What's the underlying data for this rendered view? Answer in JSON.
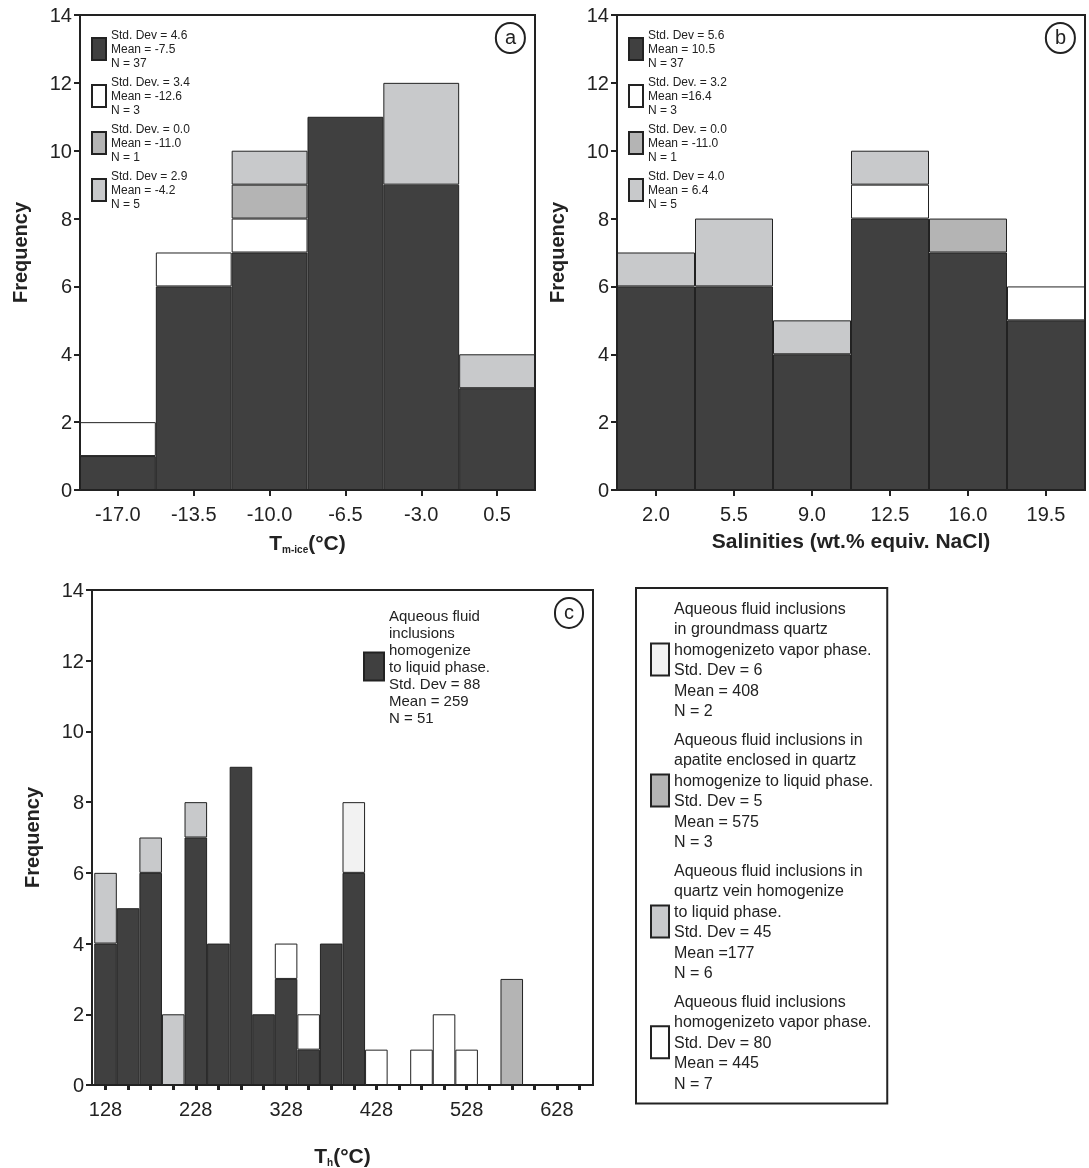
{
  "chart_data": [
    {
      "type": "bar",
      "title": "a",
      "stacked": true,
      "xlabel": "T$_{m-ice}$(°C)",
      "ylabel": "Frequency",
      "categories": [
        "-17.0",
        "-13.5",
        "-10.0",
        "-6.5",
        "-3.0",
        "0.5"
      ],
      "series": [
        {
          "name": "Std. Dev = 4.6\nMean = -7.5\nN = 37",
          "color": "#404040",
          "values": [
            1,
            6,
            7,
            11,
            9,
            3
          ]
        },
        {
          "name": "Std. Dev. = 3.4\nMean = -12.6\nN = 3",
          "color": "#ffffff",
          "values": [
            1,
            1,
            1,
            0,
            0,
            0
          ]
        },
        {
          "name": "Std. Dev. = 0.0\nMean = -11.0\nN = 1",
          "color": "#b4b4b4",
          "values": [
            0,
            0,
            1,
            0,
            0,
            0
          ]
        },
        {
          "name": "Std. Dev = 2.9\nMean = -4.2\nN = 5",
          "color": "#c8c9cb",
          "values": [
            0,
            0,
            1,
            0,
            3,
            1
          ]
        }
      ],
      "ylim": [
        0,
        14
      ],
      "yticks": [
        0,
        2,
        4,
        6,
        8,
        10,
        12,
        14
      ],
      "legend": "top left"
    },
    {
      "type": "bar",
      "title": "b",
      "stacked": true,
      "xlabel": "Salinities (wt.% equiv. NaCl)",
      "ylabel": "Frequency",
      "categories": [
        "2.0",
        "5.5",
        "9.0",
        "12.5",
        "16.0",
        "19.5"
      ],
      "series": [
        {
          "name": "Std. Dev = 5.6\nMean = 10.5\nN = 37",
          "color": "#404040",
          "values": [
            6,
            6,
            4,
            8,
            7,
            5
          ]
        },
        {
          "name": "Std. Dev. = 3.2\nMean =16.4\nN = 3",
          "color": "#ffffff",
          "values": [
            0,
            0,
            0,
            1,
            0,
            1
          ]
        },
        {
          "name": "Std. Dev. = 0.0\nMean = -11.0\nN = 1",
          "color": "#b4b4b4",
          "values": [
            0,
            0,
            0,
            0,
            1,
            0
          ]
        },
        {
          "name": "Std. Dev = 4.0\nMean = 6.4\nN = 5",
          "color": "#c8c9cb",
          "values": [
            1,
            2,
            1,
            1,
            0,
            0
          ]
        }
      ],
      "ylim": [
        0,
        14
      ],
      "yticks": [
        0,
        2,
        4,
        6,
        8,
        10,
        12,
        14
      ],
      "legend": "top left"
    },
    {
      "type": "bar",
      "title": "c",
      "stacked": true,
      "xlabel": "T$_{h}$(°C)",
      "ylabel": "Frequency",
      "x": [
        128,
        153,
        178,
        203,
        228,
        253,
        278,
        303,
        328,
        353,
        378,
        403,
        428,
        453,
        478,
        503,
        528,
        553,
        578,
        603
      ],
      "series": [
        {
          "name": "Aqueous fluid\ninclusions\nhomogenize\nto liquid phase.\nStd. Dev = 88\nMean = 259\nN = 51",
          "color": "#404040",
          "values": [
            4,
            5,
            6,
            0,
            7,
            4,
            9,
            2,
            3,
            1,
            4,
            6,
            0,
            0,
            0,
            0,
            0,
            0,
            0,
            0
          ]
        },
        {
          "name": "Aqueous fluid inclusions\nin groundmass quartz\nhomogenizeto vapor phase.\nStd. Dev = 6\nMean = 408\nN = 2",
          "color": "#f2f2f2",
          "values": [
            0,
            0,
            0,
            0,
            0,
            0,
            0,
            0,
            0,
            0,
            0,
            2,
            0,
            0,
            0,
            0,
            0,
            0,
            0,
            0
          ]
        },
        {
          "name": "Aqueous fluid inclusions in\napatite enclosed in quartz\nhomogenize to liquid phase.\nStd. Dev = 5\nMean = 575\nN = 3",
          "color": "#b4b4b4",
          "values": [
            0,
            0,
            0,
            0,
            0,
            0,
            0,
            0,
            0,
            0,
            0,
            0,
            0,
            0,
            0,
            0,
            0,
            0,
            3,
            0
          ]
        },
        {
          "name": "Aqueous fluid inclusions in\nquartz vein homogenize\nto liquid phase.\nStd. Dev = 45\nMean =177\nN = 6",
          "color": "#c8c9cb",
          "values": [
            2,
            0,
            1,
            2,
            1,
            0,
            0,
            0,
            0,
            0,
            0,
            0,
            0,
            0,
            0,
            0,
            0,
            0,
            0,
            0
          ]
        },
        {
          "name": "Aqueous fluid inclusions\nhomogenizeto vapor phase.\nStd. Dev = 80\nMean = 445\nN = 7",
          "color": "#ffffff",
          "values": [
            0,
            0,
            0,
            0,
            0,
            0,
            0,
            0,
            1,
            1,
            0,
            0,
            1,
            0,
            1,
            2,
            1,
            0,
            0,
            0
          ]
        }
      ],
      "xlim": [
        113,
        668
      ],
      "xticks": [
        128,
        {
          "value": 153,
          "label": null
        },
        {
          "value": 178,
          "label": null
        },
        {
          "value": 203,
          "label": null
        },
        228,
        {
          "value": 253,
          "label": null
        },
        {
          "value": 278,
          "label": null
        },
        {
          "value": 303,
          "label": null
        },
        328,
        {
          "value": 353,
          "label": null
        },
        {
          "value": 378,
          "label": null
        },
        {
          "value": 403,
          "label": null
        },
        428,
        {
          "value": 453,
          "label": null
        },
        {
          "value": 478,
          "label": null
        },
        {
          "value": 503,
          "label": null
        },
        528,
        {
          "value": 553,
          "label": null
        },
        {
          "value": 578,
          "label": null
        },
        {
          "value": 603,
          "label": null
        },
        628,
        {
          "value": 653,
          "label": null
        }
      ],
      "ylim": [
        0,
        14
      ],
      "yticks": [
        0,
        2,
        4,
        6,
        8,
        10,
        12,
        14
      ],
      "legend": "right"
    }
  ]
}
